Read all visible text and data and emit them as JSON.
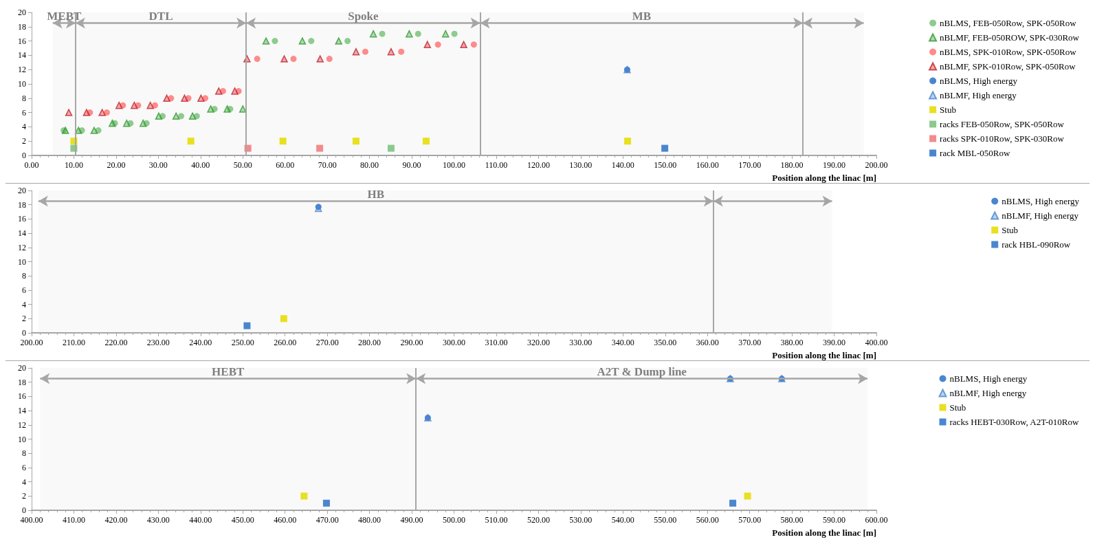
{
  "chart_data": [
    {
      "type": "scatter",
      "xlabel": "Position along the linac [m]",
      "xlim": [
        0,
        200
      ],
      "xticks": [
        {
          "value": 0,
          "label": "0.00"
        },
        {
          "value": 10,
          "label": "10.00"
        },
        {
          "value": 20,
          "label": "20.00"
        },
        {
          "value": 30,
          "label": "30.00"
        },
        {
          "value": 40,
          "label": "40.00"
        },
        {
          "value": 50,
          "label": "50.00"
        },
        {
          "value": 60,
          "label": "60.00"
        },
        {
          "value": 70,
          "label": "70.00"
        },
        {
          "value": 80,
          "label": "80.00"
        },
        {
          "value": 90,
          "label": "90.00"
        },
        {
          "value": 100,
          "label": "100.00"
        },
        {
          "value": 110,
          "label": "110.00"
        },
        {
          "value": 120,
          "label": "120.00"
        },
        {
          "value": 130,
          "label": "130.00"
        },
        {
          "value": 140,
          "label": "140.00"
        },
        {
          "value": 150,
          "label": "150.00"
        },
        {
          "value": 160,
          "label": "160.00"
        },
        {
          "value": 170,
          "label": "170.00"
        },
        {
          "value": 180,
          "label": "180.00"
        },
        {
          "value": 190,
          "label": "190.00"
        },
        {
          "value": 200,
          "label": "200.00"
        }
      ],
      "ylim": [
        0,
        20
      ],
      "yticks": [
        0,
        2,
        4,
        6,
        8,
        10,
        12,
        14,
        16,
        18,
        20
      ],
      "grid": false,
      "legend": "right",
      "series": [
        {
          "name": "nBLMS, FEB-050Row, SPK-050Row",
          "color": "#8fcb8f",
          "marker": "circle",
          "x": [
            7.6,
            11.9,
            15.8,
            19.7,
            23.4,
            27.2,
            31.0,
            35.4,
            39.1,
            43.3,
            47.0,
            57.6,
            66.2,
            74.8,
            83.0,
            91.5,
            100.1
          ],
          "values": [
            3.5,
            3.5,
            3.5,
            4.5,
            4.5,
            4.5,
            5.5,
            5.5,
            5.5,
            6.5,
            6.5,
            16,
            16,
            16,
            17,
            17,
            17
          ]
        },
        {
          "name": "nBLMF, FEB-050ROW, SPK-030Row",
          "color": "#2e9a2e",
          "marker": "triangle",
          "x": [
            8.0,
            11.1,
            14.8,
            19.1,
            22.5,
            26.4,
            30.1,
            34.2,
            38.1,
            42.4,
            46.3,
            50.0,
            55.5,
            64.1,
            72.7,
            80.9,
            89.4,
            98.0
          ],
          "values": [
            3.5,
            3.5,
            3.5,
            4.5,
            4.5,
            4.5,
            5.5,
            5.5,
            5.5,
            6.5,
            6.5,
            6.5,
            16,
            16,
            16,
            17,
            17,
            17
          ]
        },
        {
          "name": "nBLMS, SPK-010Row, SPK-050Row",
          "color": "#ff8a8a",
          "marker": "circle",
          "x": [
            13.8,
            17.8,
            21.6,
            25.2,
            29.2,
            33.0,
            37.1,
            41.1,
            45.3,
            49.0,
            53.4,
            62.0,
            70.5,
            79.0,
            87.5,
            96.2,
            104.7
          ],
          "values": [
            6,
            6,
            7,
            7,
            7,
            8,
            8,
            8,
            9,
            9,
            13.5,
            13.5,
            13.5,
            14.5,
            14.5,
            15.5,
            15.5
          ]
        },
        {
          "name": "nBLMF, SPK-010Row, SPK-050Row",
          "color": "#c8202a",
          "marker": "triangle",
          "x": [
            8.8,
            13.0,
            16.7,
            20.7,
            24.3,
            28.1,
            32.0,
            36.2,
            40.1,
            44.3,
            48.1,
            51.0,
            59.8,
            68.3,
            76.8,
            85.1,
            93.7,
            102.3
          ],
          "values": [
            6,
            6,
            6,
            7,
            7,
            7,
            8,
            8,
            8,
            9,
            9,
            13.5,
            13.5,
            13.5,
            14.5,
            14.5,
            15.5,
            15.5
          ]
        },
        {
          "name": "nBLMS, High energy",
          "color": "#4a86d0",
          "marker": "circle",
          "x": [
            141.0
          ],
          "values": [
            12
          ]
        },
        {
          "name": "nBLMF, High energy",
          "color": "#4a86d0",
          "marker": "triangle",
          "x": [
            141.0
          ],
          "values": [
            12
          ]
        },
        {
          "name": "Stub",
          "color": "#e8e020",
          "marker": "square",
          "x": [
            10.0,
            37.7,
            59.5,
            76.8,
            93.4,
            141.1
          ],
          "values": [
            2,
            2,
            2,
            2,
            2,
            2
          ]
        },
        {
          "name": "racks FEB-050Row, SPK-050Row",
          "color": "#8cc98c",
          "marker": "square",
          "x": [
            10.0,
            85.1
          ],
          "values": [
            1,
            1
          ]
        },
        {
          "name": "racks SPK-010Row, SPK-030Row",
          "color": "#f48a8a",
          "marker": "square",
          "x": [
            51.2,
            68.2
          ],
          "values": [
            1,
            1
          ]
        },
        {
          "name": "rack MBL-050Row",
          "color": "#4a86d0",
          "marker": "square",
          "x": [
            149.9
          ],
          "values": [
            1
          ]
        }
      ],
      "ref_lines": [
        {
          "axis": "x",
          "value": 10.4,
          "color": "#a6a6a6"
        },
        {
          "axis": "x",
          "value": 50.8,
          "color": "#a6a6a6"
        },
        {
          "axis": "x",
          "value": 106.2,
          "color": "#a6a6a6"
        },
        {
          "axis": "x",
          "value": 182.6,
          "color": "#a6a6a6"
        }
      ],
      "bands": [
        {
          "axis": "x",
          "from": 5,
          "to": 10.4,
          "label": "MEBT",
          "color": "#a6a6a6"
        },
        {
          "axis": "x",
          "from": 10.4,
          "to": 50.8,
          "label": "DTL",
          "color": "#a6a6a6"
        },
        {
          "axis": "x",
          "from": 50.8,
          "to": 106.2,
          "label": "Spoke",
          "color": "#a6a6a6"
        },
        {
          "axis": "x",
          "from": 106.2,
          "to": 182.6,
          "label": "MB",
          "color": "#a6a6a6"
        },
        {
          "axis": "x",
          "from": 182.6,
          "to": 197,
          "label": null,
          "color": "#a6a6a6"
        }
      ]
    },
    {
      "type": "scatter",
      "xlabel": "Position along the linac [m]",
      "xlim": [
        200,
        400
      ],
      "xticks": [
        {
          "value": 200,
          "label": "200.00"
        },
        {
          "value": 210,
          "label": "210.00"
        },
        {
          "value": 220,
          "label": "220.00"
        },
        {
          "value": 230,
          "label": "230.00"
        },
        {
          "value": 240,
          "label": "240.00"
        },
        {
          "value": 250,
          "label": "250.00"
        },
        {
          "value": 260,
          "label": "260.00"
        },
        {
          "value": 270,
          "label": "270.00"
        },
        {
          "value": 280,
          "label": "280.00"
        },
        {
          "value": 290,
          "label": "290.00"
        },
        {
          "value": 300,
          "label": "300.00"
        },
        {
          "value": 310,
          "label": "310.00"
        },
        {
          "value": 320,
          "label": "320.00"
        },
        {
          "value": 330,
          "label": "330.00"
        },
        {
          "value": 340,
          "label": "340.00"
        },
        {
          "value": 350,
          "label": "350.00"
        },
        {
          "value": 360,
          "label": "360.00"
        },
        {
          "value": 370,
          "label": "370.00"
        },
        {
          "value": 380,
          "label": "380.00"
        },
        {
          "value": 390,
          "label": "390.00"
        },
        {
          "value": 400,
          "label": "400.00"
        }
      ],
      "ylim": [
        0,
        20
      ],
      "yticks": [
        0,
        2,
        4,
        6,
        8,
        10,
        12,
        14,
        16,
        18,
        20
      ],
      "grid": false,
      "legend": "right",
      "series": [
        {
          "name": "nBLMS, High energy",
          "color": "#4a86d0",
          "marker": "circle",
          "x": [
            267.9
          ],
          "values": [
            17.7
          ]
        },
        {
          "name": "nBLMF, High energy",
          "color": "#4a86d0",
          "marker": "triangle",
          "x": [
            267.9
          ],
          "values": [
            17.5
          ]
        },
        {
          "name": "Stub",
          "color": "#e8e020",
          "marker": "square",
          "x": [
            259.7
          ],
          "values": [
            2
          ]
        },
        {
          "name": "rack HBL-090Row",
          "color": "#4a86d0",
          "marker": "square",
          "x": [
            251.0
          ],
          "values": [
            1
          ]
        }
      ],
      "ref_lines": [
        {
          "axis": "x",
          "value": 361.4,
          "color": "#a6a6a6"
        }
      ],
      "bands": [
        {
          "axis": "x",
          "from": 201.6,
          "to": 361.4,
          "label": "HB",
          "color": "#a6a6a6"
        },
        {
          "axis": "x",
          "from": 361.4,
          "to": 389.5,
          "label": null,
          "color": "#a6a6a6"
        }
      ]
    },
    {
      "type": "scatter",
      "xlabel": "Position along the linac [m]",
      "xlim": [
        400,
        600
      ],
      "xticks": [
        {
          "value": 400,
          "label": "400.00"
        },
        {
          "value": 410,
          "label": "410.00"
        },
        {
          "value": 420,
          "label": "420.00"
        },
        {
          "value": 430,
          "label": "430.00"
        },
        {
          "value": 440,
          "label": "440.00"
        },
        {
          "value": 450,
          "label": "450.00"
        },
        {
          "value": 460,
          "label": "460.00"
        },
        {
          "value": 470,
          "label": "470.00"
        },
        {
          "value": 480,
          "label": "480.00"
        },
        {
          "value": 490,
          "label": "490.00"
        },
        {
          "value": 500,
          "label": "500.00"
        },
        {
          "value": 510,
          "label": "510.00"
        },
        {
          "value": 520,
          "label": "520.00"
        },
        {
          "value": 530,
          "label": "530.00"
        },
        {
          "value": 540,
          "label": "540.00"
        },
        {
          "value": 550,
          "label": "550.00"
        },
        {
          "value": 560,
          "label": "560.00"
        },
        {
          "value": 570,
          "label": "570.00"
        },
        {
          "value": 580,
          "label": "580.00"
        },
        {
          "value": 590,
          "label": "590.00"
        },
        {
          "value": 600,
          "label": "600.00"
        }
      ],
      "ylim": [
        0,
        20
      ],
      "yticks": [
        0,
        2,
        4,
        6,
        8,
        10,
        12,
        14,
        16,
        18,
        20
      ],
      "grid": false,
      "legend": "right",
      "series": [
        {
          "name": "nBLMS, High energy",
          "color": "#4a86d0",
          "marker": "circle",
          "x": [
            493.8,
            565.4,
            577.6
          ],
          "values": [
            13,
            18.5,
            18.5
          ]
        },
        {
          "name": "nBLMF, High energy",
          "color": "#4a86d0",
          "marker": "triangle",
          "x": [
            493.8,
            565.4,
            577.6
          ],
          "values": [
            13,
            18.5,
            18.5
          ]
        },
        {
          "name": "Stub",
          "color": "#e8e020",
          "marker": "square",
          "x": [
            464.5,
            569.5
          ],
          "values": [
            2,
            2
          ]
        },
        {
          "name": "racks HEBT-030Row, A2T-010Row",
          "color": "#4a86d0",
          "marker": "square",
          "x": [
            469.8,
            566.0
          ],
          "values": [
            1,
            1
          ]
        }
      ],
      "ref_lines": [
        {
          "axis": "x",
          "value": 491.0,
          "color": "#a6a6a6"
        }
      ],
      "bands": [
        {
          "axis": "x",
          "from": 402,
          "to": 491.0,
          "label": "HEBT",
          "color": "#a6a6a6"
        },
        {
          "axis": "x",
          "from": 491.0,
          "to": 597.9,
          "label": "A2T & Dump line",
          "color": "#a6a6a6"
        }
      ]
    }
  ]
}
